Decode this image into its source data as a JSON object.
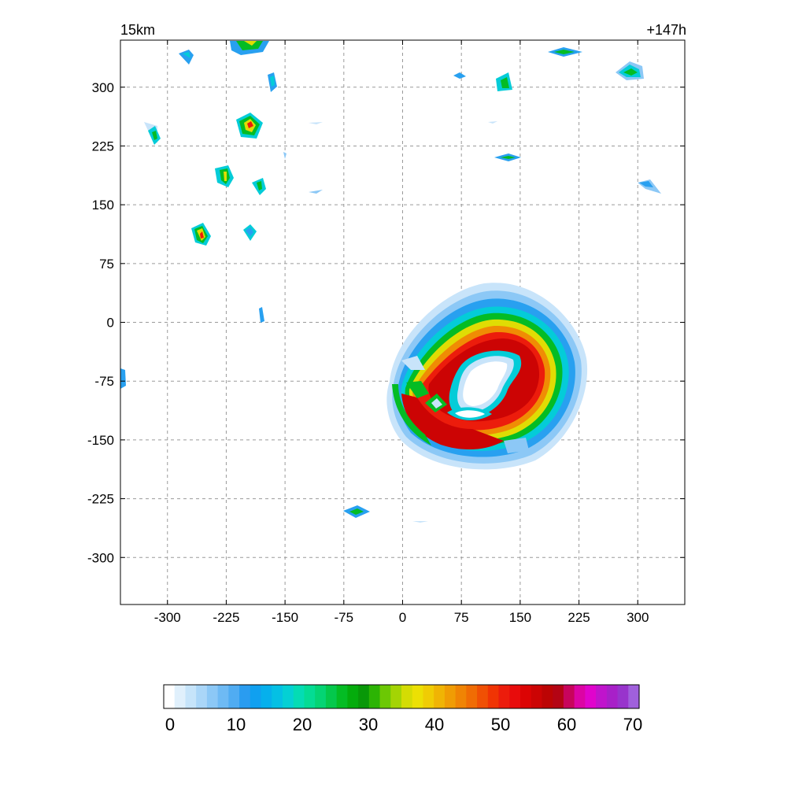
{
  "chart_data": {
    "type": "heatmap",
    "title_left": "15km",
    "title_right": "+147h",
    "xlabel": "",
    "ylabel": "",
    "xlim": [
      -360,
      360
    ],
    "ylim": [
      -360,
      360
    ],
    "xticks": [
      -300,
      -225,
      -150,
      -75,
      0,
      75,
      150,
      225,
      300
    ],
    "yticks": [
      300,
      225,
      150,
      75,
      0,
      -75,
      -150,
      -225,
      -300
    ],
    "grid": true,
    "colorbar": {
      "min": 0,
      "max": 70,
      "ticks": [
        0,
        10,
        20,
        30,
        40,
        50,
        60,
        70
      ],
      "colors": [
        "#ffffff",
        "#e0f0fc",
        "#c6e4fa",
        "#aad6f8",
        "#8cc8f6",
        "#6ebaf4",
        "#50acf2",
        "#2a9cf0",
        "#10a0f0",
        "#06b0ec",
        "#04c0e4",
        "#04d0d4",
        "#04dcb4",
        "#04dc94",
        "#04d474",
        "#04c84c",
        "#04bc24",
        "#04ac0c",
        "#089808",
        "#2cb404",
        "#6cc804",
        "#a4d404",
        "#d4dc04",
        "#ece004",
        "#f0cc04",
        "#f0b404",
        "#f09c04",
        "#f08404",
        "#f06c04",
        "#f05004",
        "#f03404",
        "#ec1c0c",
        "#e80c0c",
        "#dc0404",
        "#cc0404",
        "#bc0404",
        "#b40414",
        "#c8045c",
        "#dc04a4",
        "#e004cc",
        "#c014cc",
        "#a820c8",
        "#9834cc",
        "#a060dc"
      ]
    },
    "features": [
      {
        "name": "eyewall ring",
        "x": 105,
        "y": -90,
        "rx": 180,
        "ry": 150,
        "peak": 52
      },
      {
        "name": "cell",
        "x": -195,
        "y": 255,
        "peak": 45
      },
      {
        "name": "cell",
        "x": -255,
        "y": 115,
        "peak": 43
      },
      {
        "name": "cell",
        "x": -225,
        "y": 185,
        "peak": 30
      },
      {
        "name": "cell",
        "x": -195,
        "y": 355,
        "peak": 28
      },
      {
        "name": "cell",
        "x": 130,
        "y": 305,
        "peak": 26
      },
      {
        "name": "cell",
        "x": 290,
        "y": 318,
        "peak": 24
      },
      {
        "name": "cell",
        "x": 205,
        "y": 343,
        "peak": 22
      },
      {
        "name": "cell",
        "x": 135,
        "y": 208,
        "peak": 22
      },
      {
        "name": "cell",
        "x": -315,
        "y": 238,
        "peak": 20
      },
      {
        "name": "cell",
        "x": -180,
        "y": 175,
        "peak": 20
      },
      {
        "name": "cell",
        "x": -195,
        "y": 115,
        "peak": 16
      },
      {
        "name": "cell",
        "x": -60,
        "y": -240,
        "peak": 18
      },
      {
        "name": "cell",
        "x": -165,
        "y": 305,
        "peak": 14
      },
      {
        "name": "cell",
        "x": -275,
        "y": 340,
        "peak": 14
      },
      {
        "name": "cell",
        "x": 315,
        "y": 175,
        "peak": 10
      },
      {
        "name": "cell",
        "x": 70,
        "y": 315,
        "peak": 8
      },
      {
        "name": "cell",
        "x": -180,
        "y": 10,
        "peak": 8
      }
    ]
  }
}
